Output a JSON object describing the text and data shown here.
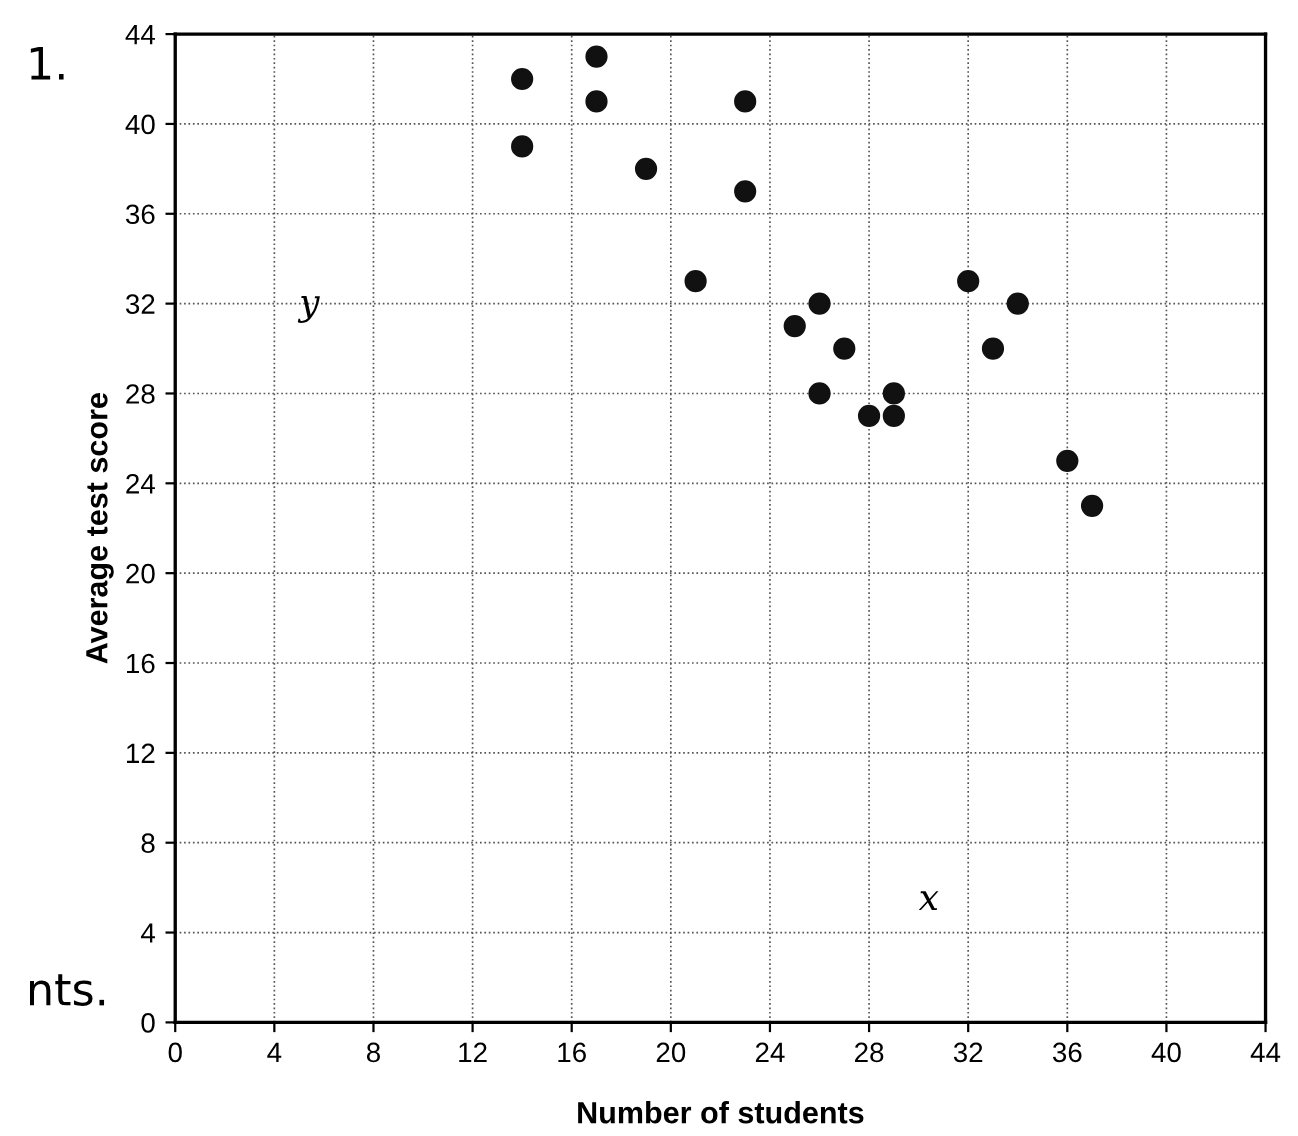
{
  "chart_data": {
    "type": "scatter",
    "xlabel": "Number of students",
    "ylabel": "Average test score",
    "x": [
      14,
      14,
      17,
      17,
      19,
      21,
      23,
      23,
      25,
      26,
      26,
      27,
      28,
      29,
      29,
      32,
      33,
      34,
      36,
      37
    ],
    "values": [
      42,
      39,
      43,
      41,
      38,
      33,
      41,
      37,
      31,
      32,
      28,
      30,
      27,
      28,
      27,
      33,
      30,
      32,
      25,
      23
    ],
    "color": "#111111",
    "marker": "circle",
    "xlim": [
      0,
      44
    ],
    "ylim": [
      0,
      44
    ],
    "xticks": [
      0,
      4,
      8,
      12,
      16,
      20,
      24,
      28,
      32,
      36,
      40,
      44
    ],
    "yticks": [
      0,
      4,
      8,
      12,
      16,
      20,
      24,
      28,
      32,
      36,
      40,
      44
    ],
    "grid": true,
    "annotations": [
      "1.",
      "nts.",
      "y",
      "x"
    ]
  }
}
